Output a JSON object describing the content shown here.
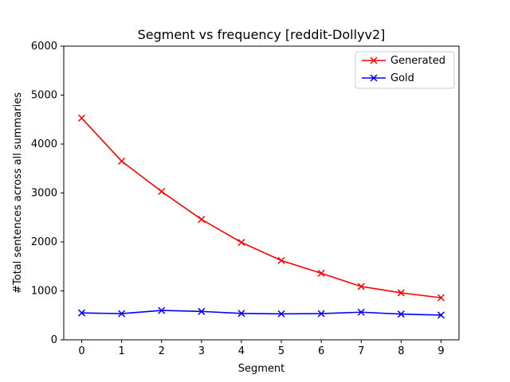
{
  "chart_data": {
    "type": "line",
    "title": "Segment vs frequency [reddit-Dollyv2]",
    "xlabel": "Segment",
    "ylabel": "#Total sentences across all summaries",
    "x": [
      0,
      1,
      2,
      3,
      4,
      5,
      6,
      7,
      8,
      9
    ],
    "xlim": [
      -0.45,
      9.45
    ],
    "ylim": [
      0,
      6000
    ],
    "xticks": [
      "0",
      "1",
      "2",
      "3",
      "4",
      "5",
      "6",
      "7",
      "8",
      "9"
    ],
    "yticks": [
      "0",
      "1000",
      "2000",
      "3000",
      "4000",
      "5000",
      "6000"
    ],
    "grid": false,
    "legend_position": "top-right",
    "series": [
      {
        "name": "Generated",
        "color": "#ff0000",
        "marker": "x",
        "values": [
          4530,
          3650,
          3030,
          2460,
          1990,
          1620,
          1360,
          1090,
          960,
          860
        ]
      },
      {
        "name": "Gold",
        "color": "#0000ff",
        "marker": "x",
        "values": [
          550,
          535,
          600,
          580,
          540,
          530,
          535,
          565,
          525,
          505
        ]
      }
    ]
  }
}
